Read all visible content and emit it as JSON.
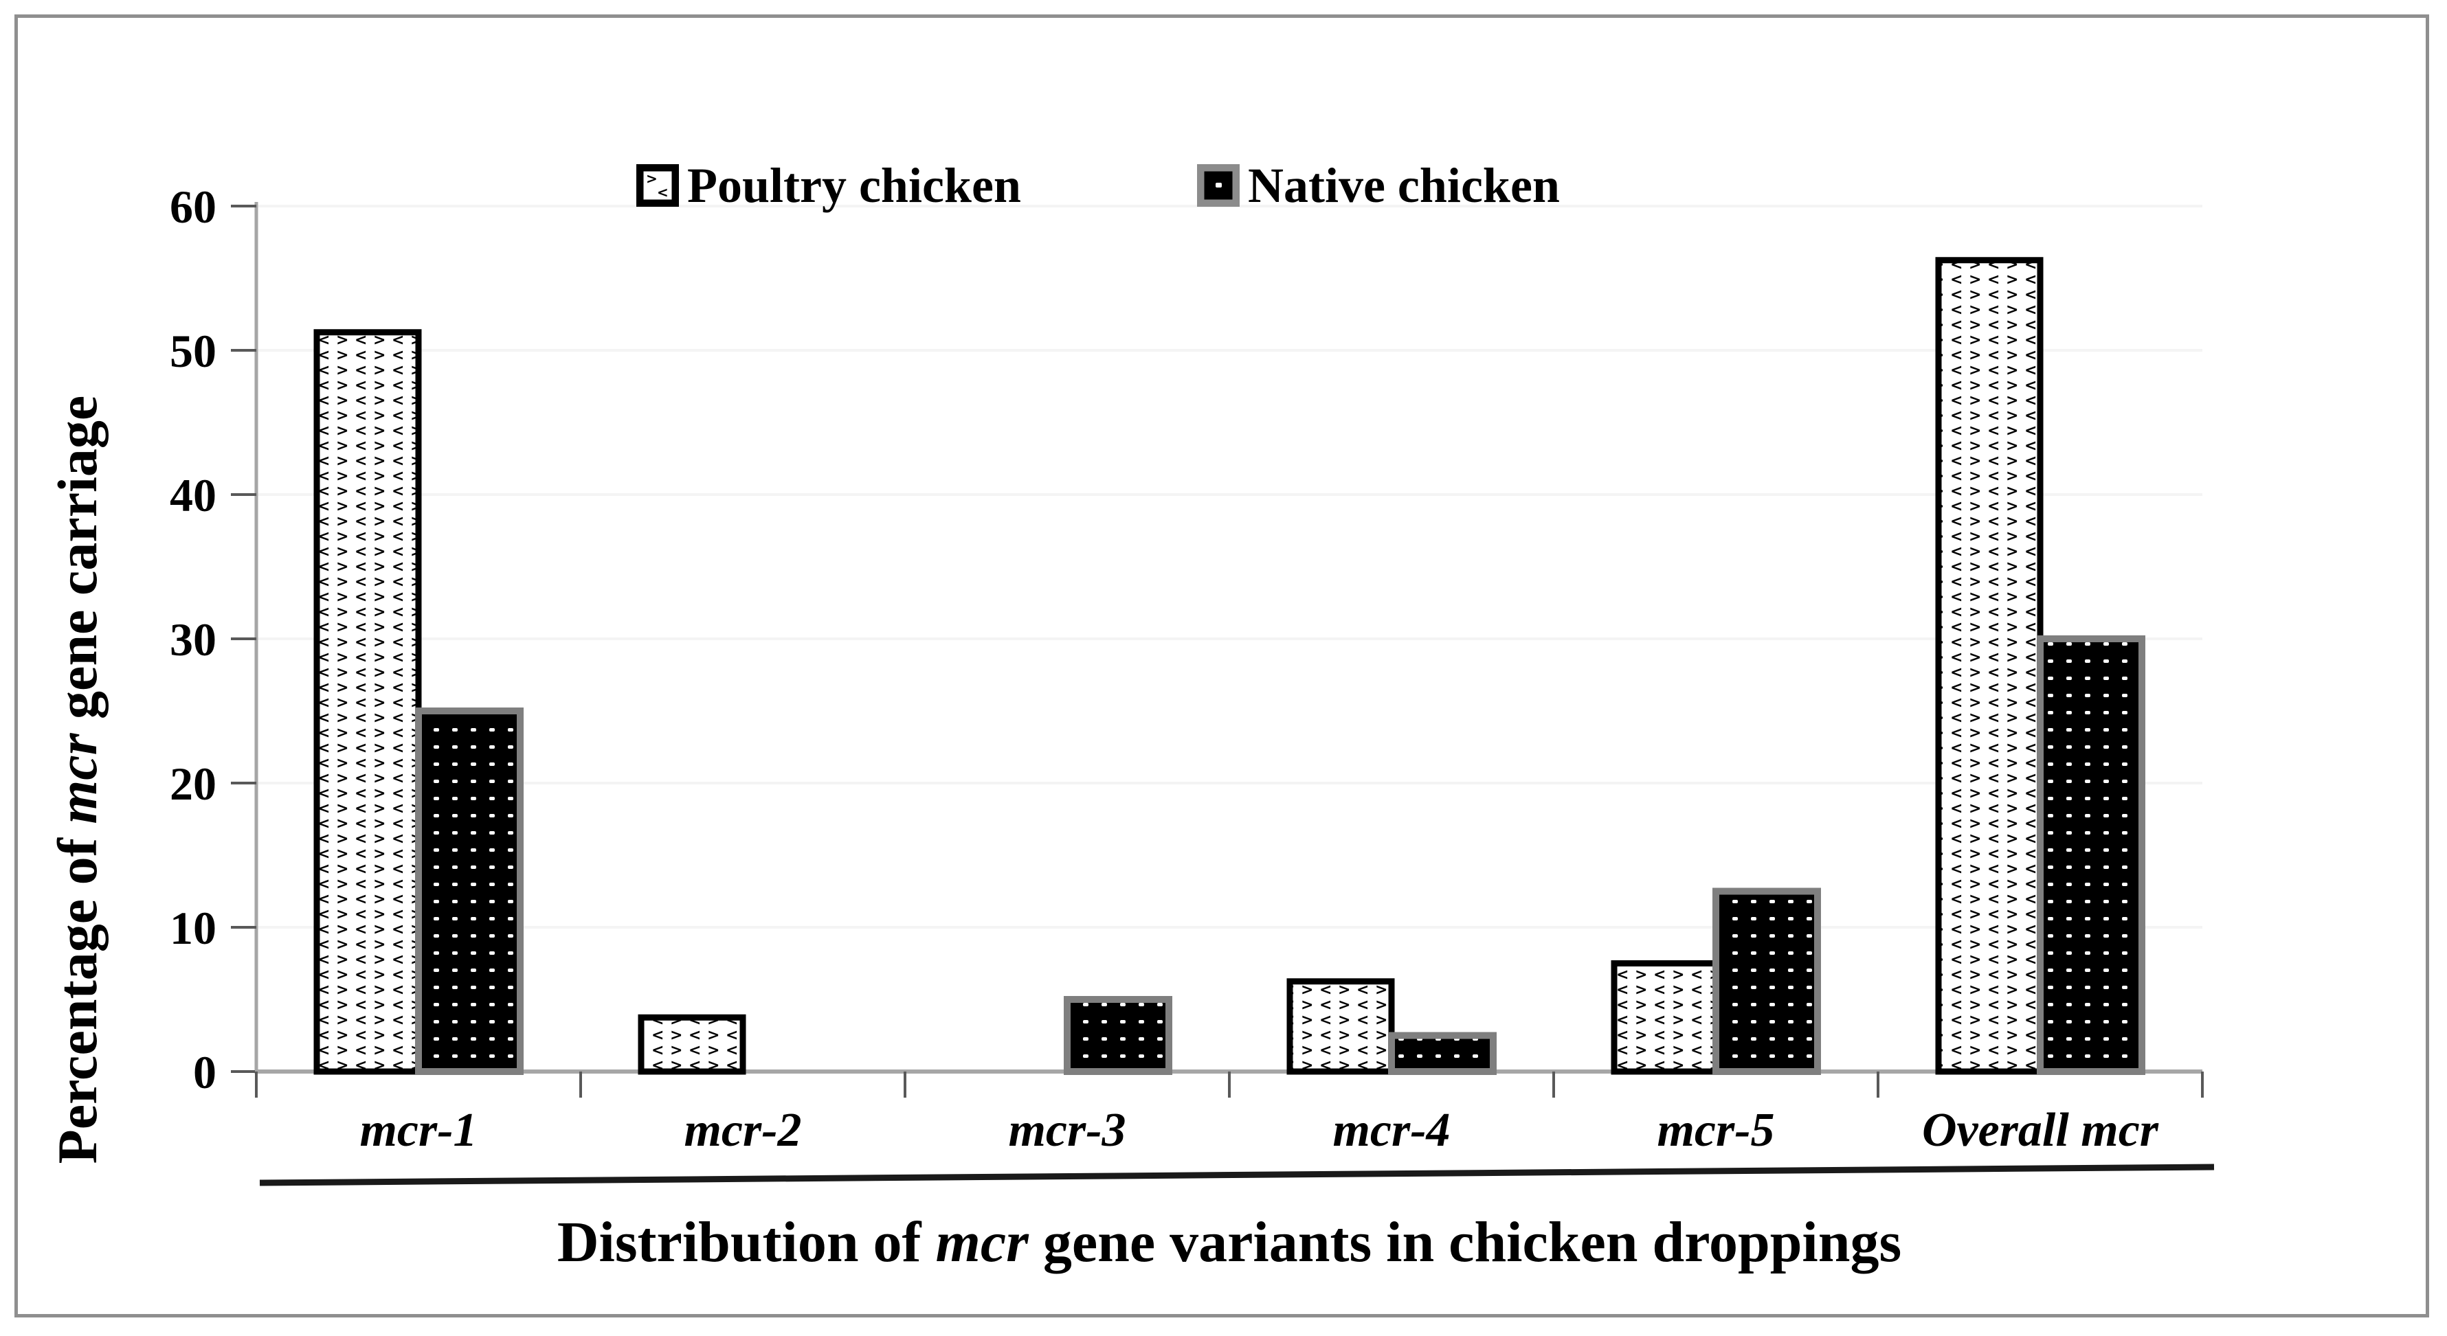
{
  "figure": {
    "background": "#ffffff",
    "frame_border_color": "#8f8f8f"
  },
  "colors": {
    "axis_line": "#a6a6a6",
    "tick_mark": "#595959",
    "gridline": "#f4f4f4",
    "underline": "#1a1a1a",
    "poultry_border": "#000000",
    "poultry_fill_bg": "#ffffff",
    "poultry_pattern_glyph": "#000000",
    "native_border": "#7f7f7f",
    "native_fill_bg": "#000000",
    "native_pattern_dot": "#ffffff",
    "text": "#000000"
  },
  "legend": {
    "items": [
      {
        "label": "Poultry chicken",
        "swatch_icon": "chevron-pattern-swatch"
      },
      {
        "label": "Native chicken",
        "swatch_icon": "dot-pattern-swatch"
      }
    ],
    "position": "top-center"
  },
  "chart_data": {
    "type": "bar",
    "categories": [
      "mcr-1",
      "mcr-2",
      "mcr-3",
      "mcr-4",
      "mcr-5",
      "Overall mcr"
    ],
    "series": [
      {
        "name": "Poultry chicken",
        "pattern": "black-chevrons-on-white",
        "values": [
          51.25,
          3.75,
          0,
          6.25,
          7.5,
          56.25
        ]
      },
      {
        "name": "Native chicken",
        "pattern": "white-dots-on-black",
        "values": [
          25,
          0,
          5,
          2.5,
          12.5,
          30
        ]
      }
    ],
    "ylim": [
      0,
      60
    ],
    "yticks": [
      0,
      10,
      20,
      30,
      40,
      50,
      60
    ],
    "grid": true,
    "legend_position": "top-center",
    "ylabel_parts": [
      {
        "text": "Percentage of "
      },
      {
        "text": "mcr",
        "italic": true
      },
      {
        "text": " gene carriage"
      }
    ],
    "xlabel_parts": [
      {
        "text": "Distribution of "
      },
      {
        "text": "mcr",
        "italic": true
      },
      {
        "text": " gene variants in chicken droppings"
      }
    ]
  }
}
